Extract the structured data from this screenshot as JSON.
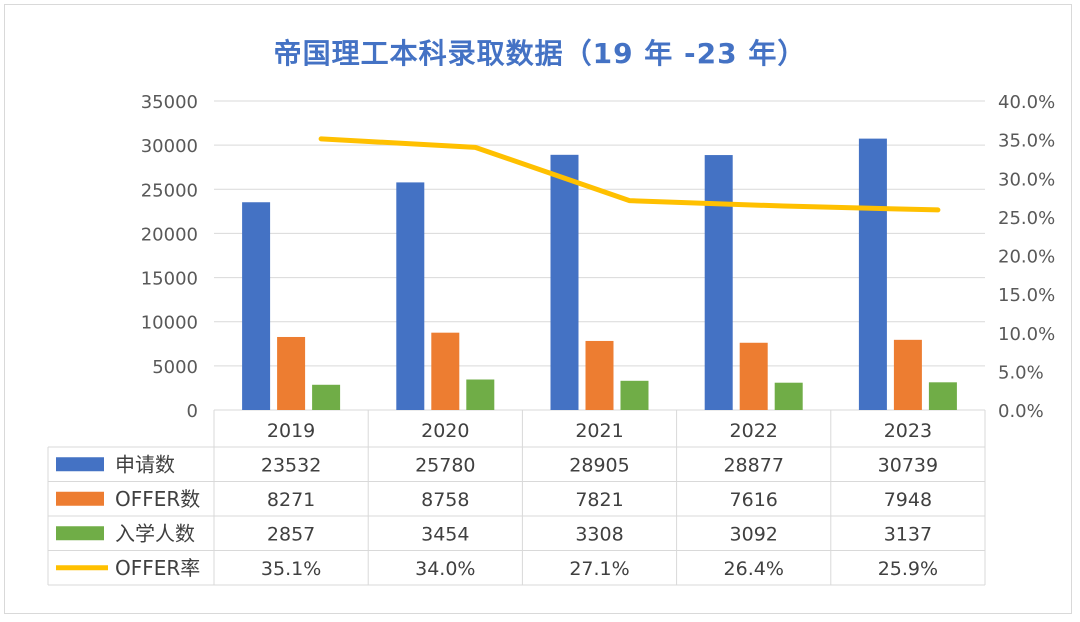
{
  "chart_data": {
    "type": "bar",
    "title": "帝国理工本科录取数据（19 年 -23 年）",
    "categories": [
      "2019",
      "2020",
      "2021",
      "2022",
      "2023"
    ],
    "series": [
      {
        "name": "申请数",
        "type": "bar",
        "axis": "left",
        "color": "#4472c4",
        "values": [
          23532,
          25780,
          28905,
          28877,
          30739
        ],
        "labels": [
          "23532",
          "25780",
          "28905",
          "28877",
          "30739"
        ]
      },
      {
        "name": "OFFER数",
        "type": "bar",
        "axis": "left",
        "color": "#ed7d31",
        "values": [
          8271,
          8758,
          7821,
          7616,
          7948
        ],
        "labels": [
          "8271",
          "8758",
          "7821",
          "7616",
          "7948"
        ]
      },
      {
        "name": "入学人数",
        "type": "bar",
        "axis": "left",
        "color": "#70ad47",
        "values": [
          2857,
          3454,
          3308,
          3092,
          3137
        ],
        "labels": [
          "2857",
          "3454",
          "3308",
          "3092",
          "3137"
        ]
      },
      {
        "name": "OFFER率",
        "type": "line",
        "axis": "right",
        "color": "#ffc000",
        "values": [
          35.1,
          34.0,
          27.1,
          26.4,
          25.9
        ],
        "labels": [
          "35.1%",
          "34.0%",
          "27.1%",
          "26.4%",
          "25.9%"
        ]
      }
    ],
    "y_left": {
      "ylim": [
        0,
        35000
      ],
      "ticks": [
        "0",
        "5000",
        "10000",
        "15000",
        "20000",
        "25000",
        "30000",
        "35000"
      ]
    },
    "y_right": {
      "ylim": [
        0,
        40
      ],
      "ticks": [
        "0.0%",
        "5.0%",
        "10.0%",
        "15.0%",
        "20.0%",
        "25.0%",
        "30.0%",
        "35.0%",
        "40.0%"
      ]
    },
    "grid": true,
    "legend": "data-table-below"
  }
}
